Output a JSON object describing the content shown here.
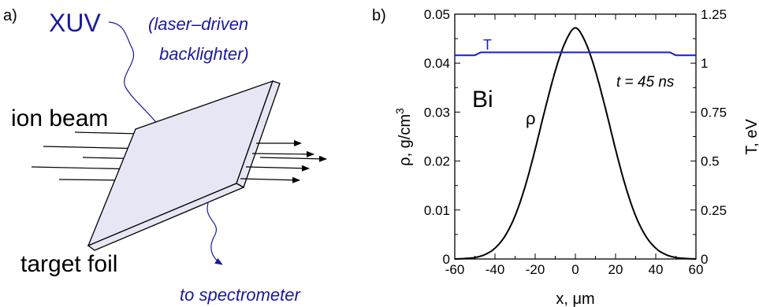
{
  "panel_a": {
    "label": "a)",
    "xuv": "XUV",
    "backlighter_line1": "(laser–driven",
    "backlighter_line2": "backlighter)",
    "ion_beam": "ion beam",
    "target_foil": "target foil",
    "to_spectrometer": "to spectrometer",
    "colors": {
      "foil_face": "#e6e6f4",
      "annotation": "#1a1aa0"
    }
  },
  "panel_b": {
    "label": "b)",
    "material": "Bi",
    "time_note": "t = 45 ns",
    "rho_curve_label": "ρ",
    "t_curve_label": "T",
    "xlabel": "x, μm",
    "ylabel_left": "ρ, g/cm",
    "ylabel_left_sup": "3",
    "ylabel_right": "T, eV"
  },
  "chart_data": {
    "type": "line",
    "x_ticks": [
      "-60",
      "-40",
      "-20",
      "0",
      "20",
      "40",
      "60"
    ],
    "y_left_ticks": [
      "0",
      "0.01",
      "0.02",
      "0.03",
      "0.04",
      "0.05"
    ],
    "y_right_ticks": [
      "0",
      "0.25",
      "0.5",
      "0.75",
      "1",
      "1.25"
    ],
    "xlim": [
      -60,
      60
    ],
    "ylim_left": [
      0,
      0.05
    ],
    "ylim_right": [
      0,
      1.25
    ],
    "series": [
      {
        "name": "ρ",
        "axis": "left",
        "color": "#000000",
        "x": [
          -60,
          -55,
          -50,
          -45,
          -40,
          -35,
          -30,
          -25,
          -20,
          -15,
          -10,
          -5,
          0,
          5,
          10,
          15,
          20,
          25,
          30,
          35,
          40,
          45,
          50,
          55,
          60
        ],
        "y": [
          0,
          0.0001,
          0.0003,
          0.0009,
          0.0022,
          0.0047,
          0.0088,
          0.0148,
          0.0224,
          0.0307,
          0.0384,
          0.0443,
          0.0472,
          0.0443,
          0.0384,
          0.0307,
          0.0224,
          0.0148,
          0.0088,
          0.0047,
          0.0022,
          0.0009,
          0.0003,
          0.0001,
          0
        ]
      },
      {
        "name": "T",
        "axis": "right",
        "color": "#1a1acc",
        "x": [
          -60,
          -50,
          -47,
          -40,
          -20,
          0,
          20,
          40,
          47,
          50,
          60
        ],
        "y": [
          1.04,
          1.04,
          1.055,
          1.055,
          1.055,
          1.055,
          1.055,
          1.055,
          1.055,
          1.04,
          1.04
        ]
      }
    ]
  }
}
